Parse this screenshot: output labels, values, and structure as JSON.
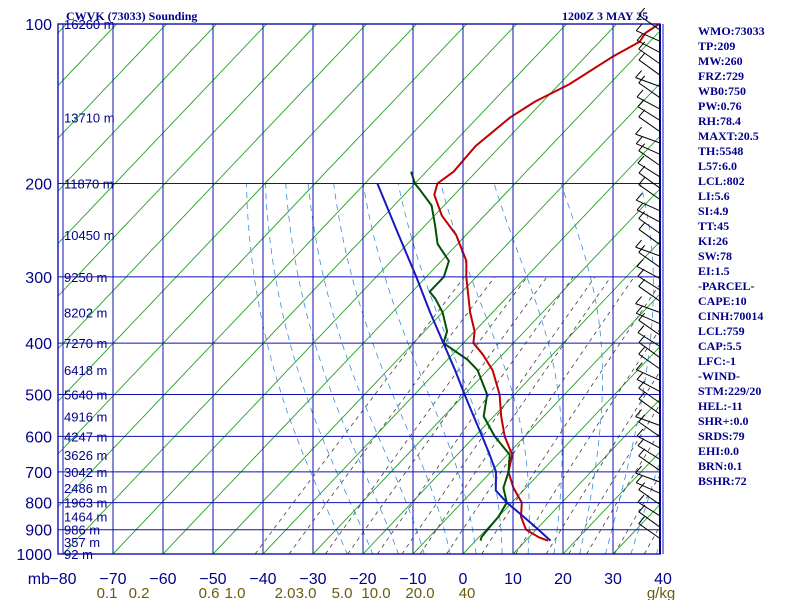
{
  "title": {
    "left": "CWVK (73033) Sounding",
    "right": "1200Z  3 MAY 25"
  },
  "sidebar": {
    "items": [
      "WMO:73033",
      "TP:209",
      "MW:260",
      "FRZ:729",
      "WB0:750",
      "PW:0.76",
      "RH:78.4",
      "MAXT:20.5",
      "TH:5548",
      "L57:6.0",
      "LCL:802",
      "LI:5.6",
      "SI:4.9",
      "TT:45",
      "KI:26",
      "SW:78",
      "EI:1.5",
      "-PARCEL-",
      "CAPE:10",
      "CINH:70014",
      "LCL:759",
      "CAP:5.5",
      "LFC:-1",
      "-WIND-",
      "STM:229/20",
      "HEL:-11",
      "SHR+:0.0",
      "SRDS:79",
      "EHI:0.0",
      "BRN:0.1",
      "BSHR:72"
    ]
  },
  "colors": {
    "grid": "#1010b0",
    "isotherm": "#22a022",
    "temperature": "#c00000",
    "dewpoint": "#005000",
    "parcel": "#1818c0",
    "mixing": "#404040",
    "moist": "#3a8ee0",
    "text": "#00008b"
  },
  "chart_data": {
    "type": "line",
    "title": "CWVK (73033) Sounding",
    "xlabel": "",
    "ylabel": "mb",
    "xlim": [
      -80,
      40
    ],
    "ylim": [
      1000,
      100
    ],
    "y_scale": "log",
    "grid": true,
    "pressure_ticks": [
      "100",
      "200",
      "300",
      "400",
      "500",
      "600",
      "700",
      "800",
      "900",
      "1000"
    ],
    "pressure_values": [
      100,
      200,
      300,
      400,
      500,
      600,
      700,
      800,
      900,
      1000
    ],
    "temp_ticks": [
      "−80",
      "−70",
      "−60",
      "−50",
      "−40",
      "−30",
      "−20",
      "−10",
      "0",
      "10",
      "20",
      "30",
      "40"
    ],
    "temp_values": [
      -80,
      -70,
      -60,
      -50,
      -40,
      -30,
      -20,
      -10,
      0,
      10,
      20,
      30,
      40
    ],
    "mixing_ratio_labels": [
      "0.1",
      "0.2",
      "0.6",
      "1.0",
      "2.0",
      "3.0",
      "5.0",
      "10.0",
      "20.0",
      "40"
    ],
    "mixing_ratio_unit": "g/kg",
    "axis_corner_label": "mb",
    "height_labels": [
      {
        "p": 100,
        "label": "16260 m"
      },
      {
        "p": 150,
        "label": "13710 m"
      },
      {
        "p": 200,
        "label": "11870 m"
      },
      {
        "p": 250,
        "label": "10450 m"
      },
      {
        "p": 300,
        "label": "9250 m"
      },
      {
        "p": 350,
        "label": "8202 m"
      },
      {
        "p": 400,
        "label": "7270 m"
      },
      {
        "p": 450,
        "label": "6418 m"
      },
      {
        "p": 500,
        "label": "5640 m"
      },
      {
        "p": 550,
        "label": "4916 m"
      },
      {
        "p": 600,
        "label": "4247 m"
      },
      {
        "p": 650,
        "label": "3626 m"
      },
      {
        "p": 700,
        "label": "3042 m"
      },
      {
        "p": 750,
        "label": "2486 m"
      },
      {
        "p": 800,
        "label": "1963 m"
      },
      {
        "p": 850,
        "label": "1464 m"
      },
      {
        "p": 900,
        "label": "986 m"
      },
      {
        "p": 950,
        "label": "357 m"
      },
      {
        "p": 1000,
        "label": "92 m"
      }
    ],
    "series": [
      {
        "name": "temperature",
        "points": [
          [
            944,
            14.5
          ],
          [
            930,
            12.0
          ],
          [
            900,
            8.0
          ],
          [
            850,
            4.5
          ],
          [
            800,
            2.0
          ],
          [
            750,
            -2.5
          ],
          [
            700,
            -6.5
          ],
          [
            650,
            -9.0
          ],
          [
            600,
            -14.0
          ],
          [
            550,
            -18.5
          ],
          [
            500,
            -23.0
          ],
          [
            450,
            -29.0
          ],
          [
            420,
            -34.0
          ],
          [
            400,
            -38.0
          ],
          [
            380,
            -40.0
          ],
          [
            350,
            -44.5
          ],
          [
            300,
            -52.0
          ],
          [
            280,
            -55.0
          ],
          [
            250,
            -62.0
          ],
          [
            230,
            -68.5
          ],
          [
            210,
            -74.0
          ],
          [
            200,
            -75.5
          ],
          [
            190,
            -74.5
          ],
          [
            170,
            -75.0
          ],
          [
            150,
            -73.5
          ],
          [
            140,
            -71.5
          ],
          [
            130,
            -68.0
          ],
          [
            115,
            -64.5
          ],
          [
            108,
            -62.0
          ],
          [
            104,
            -62.5
          ],
          [
            100,
            -61.5
          ]
        ]
      },
      {
        "name": "dewpoint",
        "points": [
          [
            944,
            1.0
          ],
          [
            930,
            0.5
          ],
          [
            900,
            0.3
          ],
          [
            850,
            0.0
          ],
          [
            800,
            -1.0
          ],
          [
            750,
            -4.5
          ],
          [
            700,
            -6.5
          ],
          [
            650,
            -9.5
          ],
          [
            600,
            -16.0
          ],
          [
            550,
            -22.0
          ],
          [
            500,
            -25.5
          ],
          [
            450,
            -32.0
          ],
          [
            430,
            -36.0
          ],
          [
            400,
            -44.0
          ],
          [
            380,
            -45.5
          ],
          [
            350,
            -50.0
          ],
          [
            330,
            -54.0
          ],
          [
            320,
            -56.5
          ],
          [
            300,
            -56.5
          ],
          [
            280,
            -58.5
          ],
          [
            260,
            -64.0
          ],
          [
            240,
            -68.0
          ],
          [
            220,
            -72.5
          ],
          [
            205,
            -78.0
          ],
          [
            200,
            -80.0
          ],
          [
            190,
            -83.0
          ]
        ]
      },
      {
        "name": "parcel",
        "points": [
          [
            944,
            15.0
          ],
          [
            900,
            10.5
          ],
          [
            850,
            5.0
          ],
          [
            800,
            -1.0
          ],
          [
            759,
            -5.5
          ],
          [
            700,
            -9.0
          ],
          [
            650,
            -13.5
          ],
          [
            600,
            -18.5
          ],
          [
            550,
            -24.0
          ],
          [
            500,
            -30.0
          ],
          [
            450,
            -36.5
          ],
          [
            400,
            -44.0
          ],
          [
            350,
            -52.5
          ],
          [
            300,
            -62.0
          ],
          [
            250,
            -73.5
          ],
          [
            200,
            -87.5
          ]
        ]
      }
    ]
  }
}
